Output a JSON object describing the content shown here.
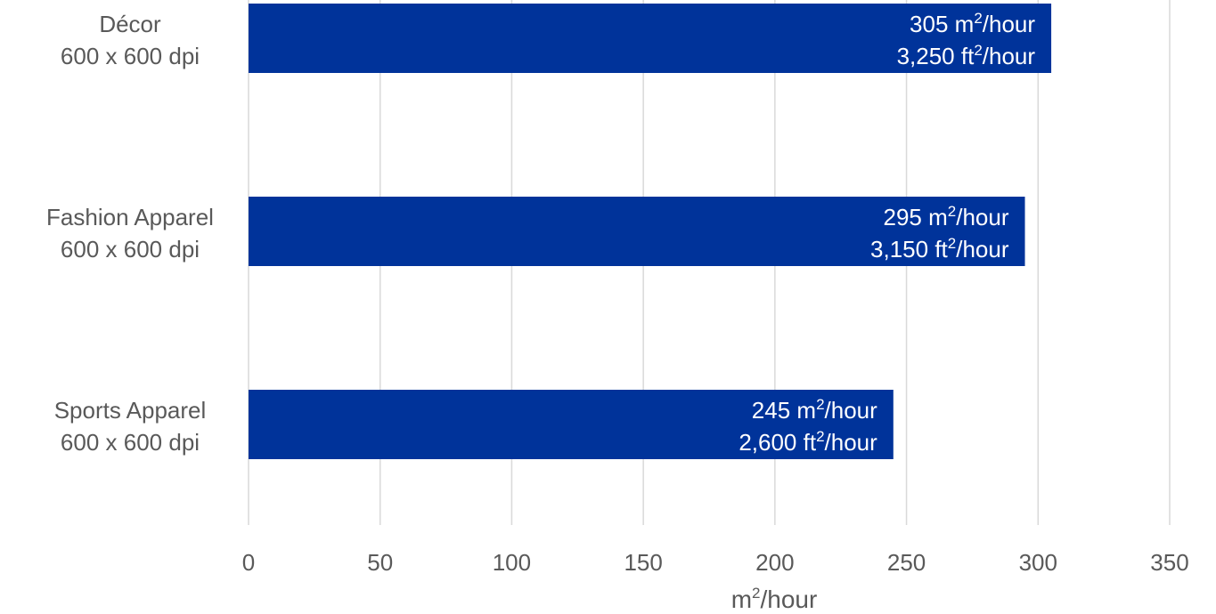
{
  "chart_data": {
    "type": "bar",
    "orientation": "horizontal",
    "categories": [
      [
        "Décor",
        "600 x 600 dpi"
      ],
      [
        "Fashion Apparel",
        "600 x 600 dpi"
      ],
      [
        "Sports Apparel",
        "600 x 600 dpi"
      ]
    ],
    "values": [
      305,
      295,
      245
    ],
    "data_labels": [
      [
        {
          "num": "305 m",
          "sup": "2",
          "unit": "/hour"
        },
        {
          "num": "3,250 ft",
          "sup": "2",
          "unit": "/hour"
        }
      ],
      [
        {
          "num": "295 m",
          "sup": "2",
          "unit": "/hour"
        },
        {
          "num": "3,150 ft",
          "sup": "2",
          "unit": "/hour"
        }
      ],
      [
        {
          "num": "245 m",
          "sup": "2",
          "unit": "/hour"
        },
        {
          "num": "2,600 ft",
          "sup": "2",
          "unit": "/hour"
        }
      ]
    ],
    "xlim": [
      0,
      350
    ],
    "xticks": [
      0,
      50,
      100,
      150,
      200,
      250,
      300,
      350
    ],
    "xlabel": {
      "base": "m",
      "sup": "2",
      "rest": "/hour"
    },
    "grid": "vertical",
    "bar_color": "#00339a",
    "grid_color": "#d9d9d9",
    "text_color": "#595959"
  }
}
